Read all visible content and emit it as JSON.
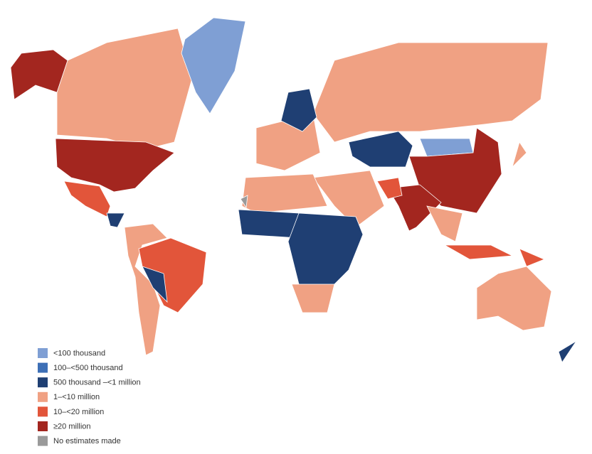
{
  "legend": {
    "items": [
      {
        "label": "<100 thousand",
        "color": "#7f9fd4"
      },
      {
        "label": "100–<500 thousand",
        "color": "#3d6fb6"
      },
      {
        "label": "500 thousand –<1 million",
        "color": "#1f3f73"
      },
      {
        "label": "1–<10 million",
        "color": "#f0a183"
      },
      {
        "label": "10–<20 million",
        "color": "#e2553a"
      },
      {
        "label": "≥20 million",
        "color": "#a3261f"
      },
      {
        "label": "No estimates made",
        "color": "#9a9a9a"
      }
    ]
  }
}
